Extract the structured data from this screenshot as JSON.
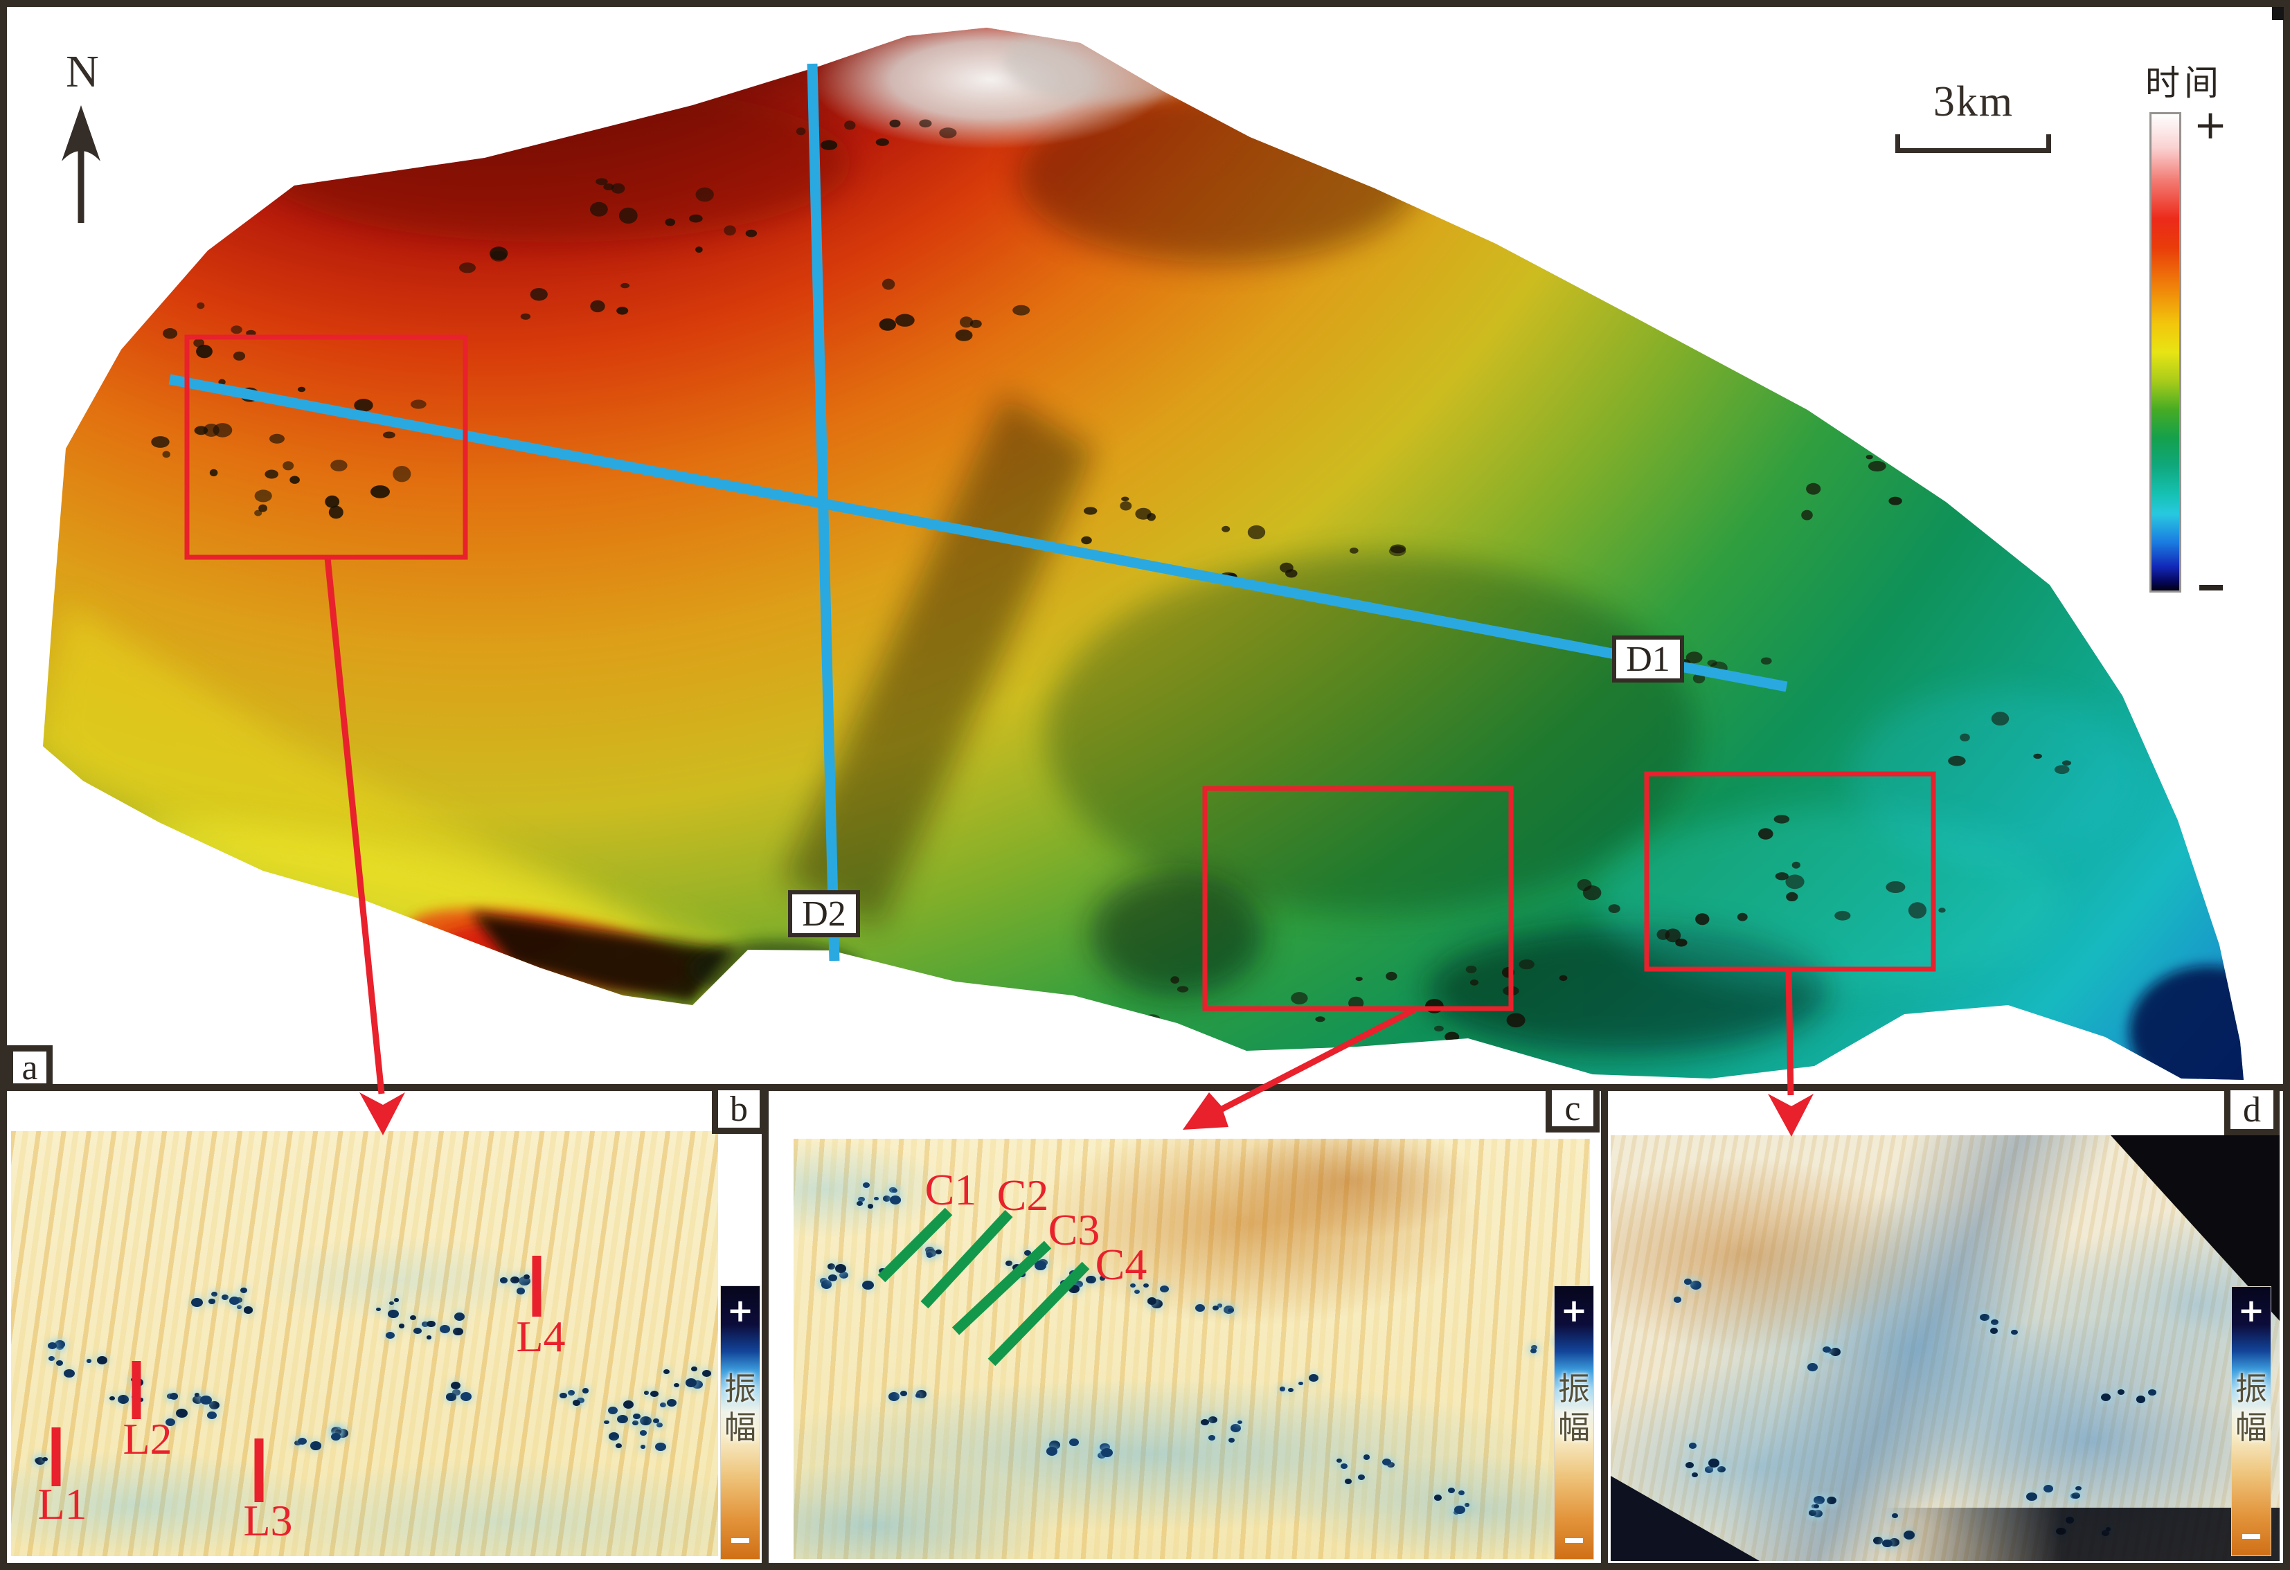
{
  "figure": {
    "panels": {
      "a": {
        "label": "a",
        "north": "N",
        "scale": "3km",
        "colorbar": {
          "title": "时间",
          "top": "+",
          "bottom": "−"
        },
        "lines": {
          "d1": "D1",
          "d2": "D2"
        }
      },
      "b": {
        "label": "b",
        "colorbar": {
          "title": "振幅",
          "top": "+",
          "bottom": "−"
        },
        "markers": {
          "l1": "L1",
          "l2": "L2",
          "l3": "L3",
          "l4": "L4"
        }
      },
      "c": {
        "label": "c",
        "colorbar": {
          "title": "振幅",
          "top": "+",
          "bottom": "−"
        },
        "markers": {
          "c1": "C1",
          "c2": "C2",
          "c3": "C3",
          "c4": "C4"
        }
      },
      "d": {
        "label": "d",
        "colorbar": {
          "title": "振幅",
          "top": "+",
          "bottom": "−"
        }
      }
    },
    "colors": {
      "annotation_red": "#e8212c",
      "section_line_blue": "#2aa9e1",
      "core_line_green": "#13984b",
      "frame_dark": "#342d26"
    }
  }
}
